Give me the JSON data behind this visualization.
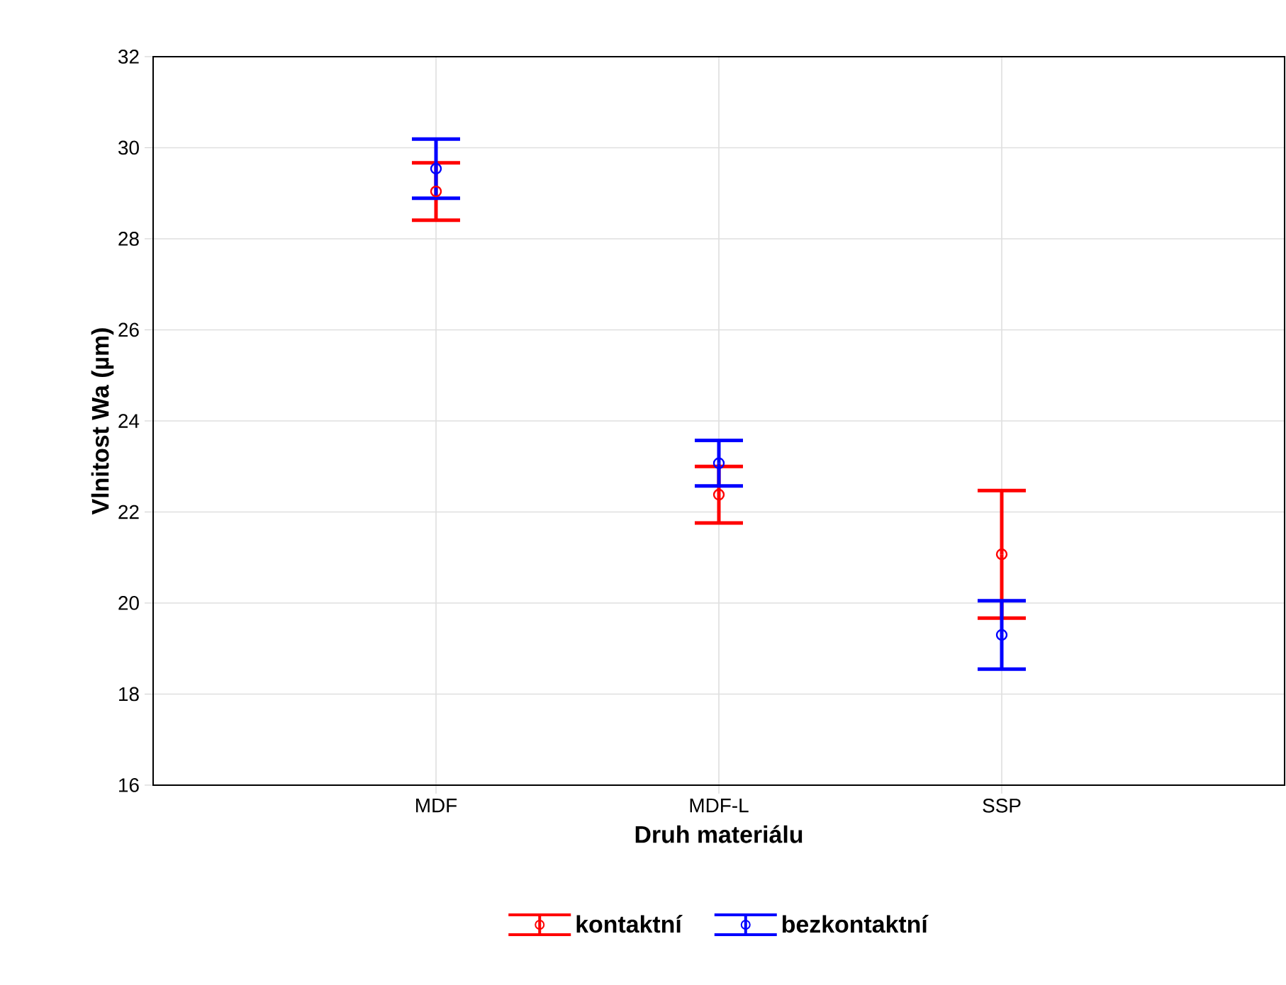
{
  "chart_data": {
    "type": "scatter",
    "xlabel": "Druh materiálu",
    "ylabel": "Vlnitost Wa (µm)",
    "categories": [
      "MDF",
      "MDF-L",
      "SSP"
    ],
    "series": [
      {
        "name": "kontaktní",
        "color": "#ff0000",
        "values": [
          29.04,
          22.38,
          21.07
        ],
        "errors": [
          0.63,
          0.62,
          1.4
        ]
      },
      {
        "name": "bezkontaktní",
        "color": "#0000ff",
        "values": [
          29.54,
          23.07,
          19.3
        ],
        "errors": [
          0.65,
          0.5,
          0.75
        ]
      }
    ],
    "ylim": [
      16,
      32
    ],
    "yticks": [
      16,
      18,
      20,
      22,
      24,
      26,
      28,
      30,
      32
    ],
    "grid": true,
    "legend": "bottom",
    "marker": "circle"
  }
}
